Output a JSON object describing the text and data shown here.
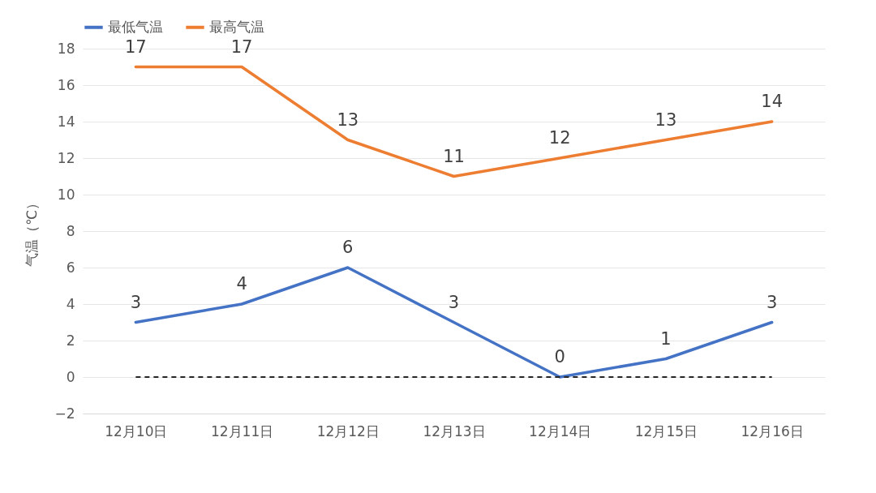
{
  "chart_data": {
    "type": "line",
    "ylabel": "气温（℃）",
    "categories": [
      "12月10日",
      "12月11日",
      "12月12日",
      "12月13日",
      "12月14日",
      "12月15日",
      "12月16日"
    ],
    "series": [
      {
        "name": "最低气温",
        "color": "#4472c4",
        "values": [
          3,
          4,
          6,
          3,
          0,
          1,
          3
        ]
      },
      {
        "name": "最高气温",
        "color": "#ed7d31",
        "values": [
          17,
          17,
          13,
          11,
          12,
          13,
          14
        ]
      }
    ],
    "ylim": [
      -2,
      18
    ],
    "yticks": [
      -2,
      0,
      2,
      4,
      6,
      8,
      10,
      12,
      14,
      16,
      18
    ],
    "ref_lines": [
      {
        "axis": "y",
        "value": 0,
        "color": "#262626",
        "line_style": "dashed"
      }
    ],
    "data_labels": true,
    "grid": "y",
    "legend": "top",
    "marker": "none",
    "line_style": "solid"
  }
}
